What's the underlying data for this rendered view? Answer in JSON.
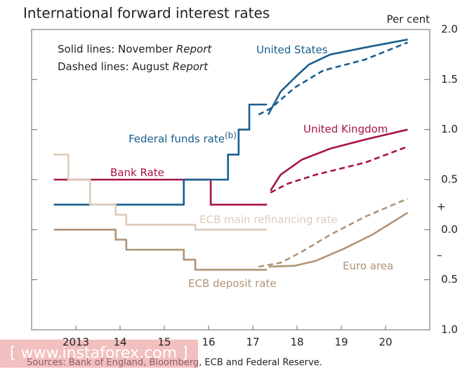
{
  "chart_data": {
    "type": "line",
    "title": "International forward interest rates",
    "y_axis_label": "Per cent",
    "annotations": {
      "solid_prefix": "Solid lines:  November ",
      "solid_italic": "Report",
      "dashed_prefix": "Dashed lines:  August ",
      "dashed_italic": "Report",
      "plus": "+",
      "minus": "–"
    },
    "source": "Sources:  Bank of England, Bloomberg, ECB and Federal Reserve.",
    "watermark": "[ www.instaforex.com ]",
    "xlim": [
      2012.5,
      2021.5
    ],
    "xticks": [
      {
        "value": 2013.5,
        "label": "2013"
      },
      {
        "value": 2014.5,
        "label": "14"
      },
      {
        "value": 2015.5,
        "label": "15"
      },
      {
        "value": 2016.5,
        "label": "16"
      },
      {
        "value": 2017.5,
        "label": "17"
      },
      {
        "value": 2018.5,
        "label": "18"
      },
      {
        "value": 2019.5,
        "label": "19"
      },
      {
        "value": 2020.5,
        "label": "20"
      }
    ],
    "ylim": [
      -1.0,
      2.0
    ],
    "yticks": [
      {
        "value": 2.0,
        "label": "2.0"
      },
      1.5,
      {
        "value": 1.0,
        "label": "1.0"
      },
      0.5,
      {
        "value": 0,
        "label": "0.0"
      },
      {
        "value": -0.5,
        "label": "0.5"
      },
      {
        "value": -1.0,
        "label": "1.0"
      }
    ],
    "grid": false,
    "series": [
      {
        "name": "Bank Rate",
        "color": "#a8124a",
        "dashed": false,
        "x": [
          2013.0,
          2016.55,
          2016.55,
          2017.82
        ],
        "values": [
          0.5,
          0.5,
          0.25,
          0.25
        ]
      },
      {
        "name": "United Kingdom",
        "color": "#a8124a",
        "dashed": false,
        "x": [
          2017.9,
          2018.13,
          2018.61,
          2019.25,
          2020.04,
          2021.0
        ],
        "values": [
          0.39,
          0.55,
          0.7,
          0.81,
          0.9,
          1.0
        ]
      },
      {
        "color": "#a8124a",
        "dashed": true,
        "x": [
          2017.9,
          2018.29,
          2018.93,
          2020.04,
          2021.0
        ],
        "values": [
          0.37,
          0.46,
          0.55,
          0.67,
          0.83
        ]
      },
      {
        "name": "Federal funds rate",
        "note": "(b)",
        "color": "#1a5e8e",
        "dashed": false,
        "x": [
          2013.0,
          2015.94,
          2015.94,
          2016.94,
          2016.94,
          2017.18,
          2017.18,
          2017.42,
          2017.42,
          2017.82
        ],
        "values": [
          0.25,
          0.25,
          0.5,
          0.5,
          0.75,
          0.75,
          1.0,
          1.0,
          1.25,
          1.25
        ]
      },
      {
        "name": "United States",
        "color": "#1a5e8e",
        "dashed": false,
        "x": [
          2017.85,
          2018.13,
          2018.45,
          2018.77,
          2019.25,
          2020.04,
          2021.0
        ],
        "values": [
          1.15,
          1.38,
          1.52,
          1.65,
          1.75,
          1.82,
          1.9
        ]
      },
      {
        "color": "#1a5e8e",
        "dashed": true,
        "x": [
          2017.63,
          2017.9,
          2018.45,
          2019.09,
          2020.04,
          2021.0
        ],
        "values": [
          1.15,
          1.21,
          1.42,
          1.59,
          1.7,
          1.87
        ]
      },
      {
        "name": "ECB main refinancing rate",
        "color": "#dccbb9",
        "dashed": false,
        "x": [
          2013.0,
          2013.33,
          2013.33,
          2013.82,
          2013.82,
          2014.4,
          2014.4,
          2014.64,
          2014.64,
          2016.2,
          2016.2,
          2017.82
        ],
        "values": [
          0.75,
          0.75,
          0.5,
          0.5,
          0.25,
          0.25,
          0.15,
          0.15,
          0.05,
          0.05,
          0.0,
          0.0
        ]
      },
      {
        "name": "ECB deposit rate",
        "color": "#b09479",
        "dashed": false,
        "x": [
          2013.0,
          2014.4,
          2014.4,
          2014.64,
          2014.64,
          2015.94,
          2015.94,
          2016.2,
          2016.2,
          2017.82
        ],
        "values": [
          0.0,
          0.0,
          -0.1,
          -0.1,
          -0.2,
          -0.2,
          -0.3,
          -0.3,
          -0.4,
          -0.4
        ]
      },
      {
        "name": "Euro area",
        "color": "#b09479",
        "dashed": false,
        "x": [
          2017.86,
          2018.45,
          2018.93,
          2019.56,
          2020.2,
          2021.0
        ],
        "values": [
          -0.37,
          -0.36,
          -0.31,
          -0.19,
          -0.05,
          0.17
        ]
      },
      {
        "color": "#b09479",
        "dashed": true,
        "x": [
          2017.63,
          2018.13,
          2018.61,
          2019.25,
          2020.04,
          2021.0
        ],
        "values": [
          -0.37,
          -0.33,
          -0.22,
          -0.05,
          0.13,
          0.31
        ]
      }
    ]
  }
}
